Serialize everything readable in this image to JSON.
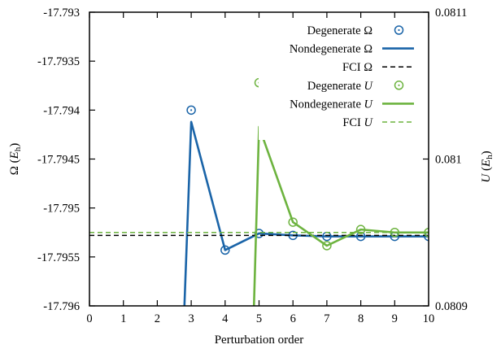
{
  "chart_data": {
    "type": "line",
    "xlabel": "Perturbation order",
    "ylabel_left": {
      "symbol": "Ω",
      "unit_base": "E",
      "unit_sub": "h"
    },
    "ylabel_right": {
      "symbol": "U",
      "unit_base": "E",
      "unit_sub": "h"
    },
    "xlim": [
      0,
      10
    ],
    "ylim_left": [
      -17.796,
      -17.793
    ],
    "ylim_right": [
      0.0809,
      0.0811
    ],
    "x_ticks": [
      "0",
      "1",
      "2",
      "3",
      "4",
      "5",
      "6",
      "7",
      "8",
      "9",
      "10"
    ],
    "y_ticks_left": [
      "-17.793",
      "-17.7935",
      "-17.794",
      "-17.7945",
      "-17.795",
      "-17.7955",
      "-17.796"
    ],
    "y_ticks_right": [
      "0.0811",
      "0.081",
      "0.0809"
    ],
    "grid": false,
    "legend_position": "top-right",
    "colors": {
      "omega": "#1a64a8",
      "u": "#6db33f",
      "fci_omega": "#000000"
    },
    "series": [
      {
        "name_prefix": "Degenerate",
        "symbol": "Ω",
        "italic": false,
        "axis": "left",
        "style": "markers",
        "color": "#1a64a8",
        "x": [
          3,
          4,
          5,
          6,
          7,
          8,
          9,
          10
        ],
        "y": [
          -17.794,
          -17.79543,
          -17.79526,
          -17.79528,
          -17.79529,
          -17.79529,
          -17.79529,
          -17.79529
        ]
      },
      {
        "name_prefix": "Nondegenerate",
        "symbol": "Ω",
        "italic": false,
        "axis": "left",
        "style": "line",
        "color": "#1a64a8",
        "x": [
          2.8,
          3,
          4,
          5,
          6,
          7,
          8,
          9,
          10
        ],
        "y": [
          -17.796,
          -17.79412,
          -17.79543,
          -17.79526,
          -17.79528,
          -17.79529,
          -17.79529,
          -17.79529,
          -17.79529
        ]
      },
      {
        "name_prefix": "FCI",
        "symbol": "Ω",
        "italic": false,
        "axis": "left",
        "style": "dashed",
        "color": "#000000",
        "x": [
          0,
          10
        ],
        "y": [
          -17.79528,
          -17.79528
        ]
      },
      {
        "name_prefix": "Degenerate",
        "symbol": "U",
        "italic": true,
        "axis": "right",
        "style": "markers",
        "color": "#6db33f",
        "x": [
          5,
          6,
          7,
          8,
          9,
          10
        ],
        "y": [
          0.081052,
          0.080957,
          0.080941,
          0.080952,
          0.08095,
          0.08095
        ]
      },
      {
        "name_prefix": "Nondegenerate",
        "symbol": "U",
        "italic": true,
        "axis": "right",
        "style": "line",
        "color": "#6db33f",
        "x": [
          4.85,
          5,
          6,
          7,
          8,
          9,
          10
        ],
        "y": [
          0.0809,
          0.081022,
          0.080957,
          0.080941,
          0.080952,
          0.08095,
          0.08095
        ]
      },
      {
        "name_prefix": "FCI",
        "symbol": "U",
        "italic": true,
        "axis": "right",
        "style": "dashed",
        "color": "#6db33f",
        "x": [
          0,
          10
        ],
        "y": [
          0.08095,
          0.08095
        ]
      }
    ]
  }
}
